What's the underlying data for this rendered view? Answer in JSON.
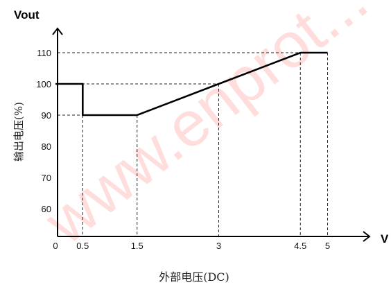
{
  "chart_data": {
    "type": "line",
    "y_axis_title": "Vout",
    "x_axis_unit": "V",
    "ylabel": "输出电压(%)",
    "xlabel": "外部电压(DC)",
    "watermark": "www.enprot... 自動...",
    "x_ticks": [
      "0",
      "0.5",
      "1.5",
      "3",
      "4.5",
      "5"
    ],
    "y_ticks": [
      "60",
      "70",
      "80",
      "90",
      "100",
      "110"
    ],
    "xlim": [
      0,
      5.3
    ],
    "ylim": [
      50,
      119
    ],
    "series": [
      {
        "points": [
          {
            "x": 0,
            "y": 100
          },
          {
            "x": 0.5,
            "y": 100
          },
          {
            "x": 0.5,
            "y": 90
          },
          {
            "x": 1.5,
            "y": 90
          },
          {
            "x": 3,
            "y": 100
          },
          {
            "x": 4.5,
            "y": 110
          },
          {
            "x": 5,
            "y": 110
          }
        ]
      }
    ],
    "guide_lines": [
      {
        "x": 0.5,
        "y": 90
      },
      {
        "x": 1.5,
        "y": 90
      },
      {
        "x": 3,
        "y": 100
      },
      {
        "x": 4.5,
        "y": 110
      },
      {
        "x": 5,
        "y": 110
      }
    ],
    "grid": false,
    "colors": {
      "line": "#000000",
      "guide": "#222222",
      "watermark": "#ff0000"
    }
  }
}
